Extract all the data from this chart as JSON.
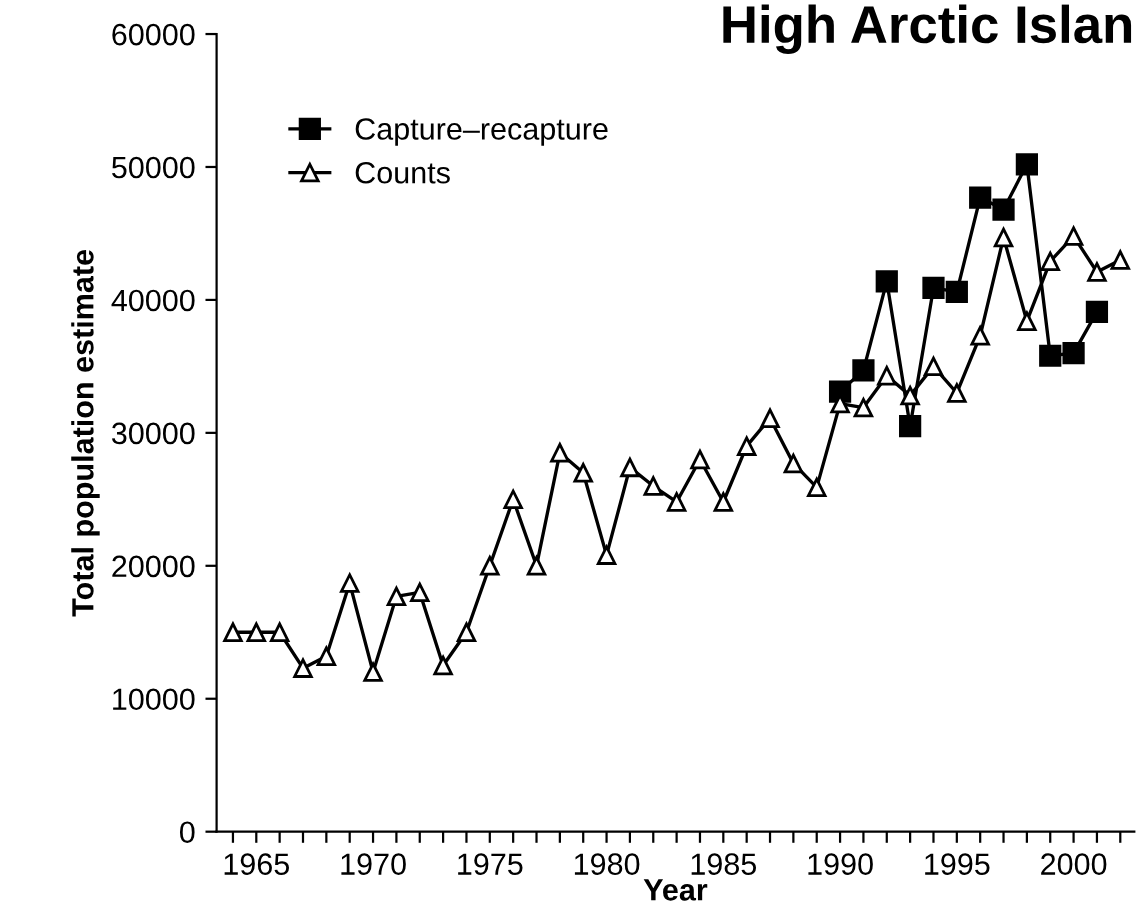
{
  "chart_data": {
    "type": "line",
    "title": "High Arctic Islan",
    "xlabel": "Year",
    "ylabel": "Total population estimate",
    "xlim": [
      1963.3,
      2002.6
    ],
    "ylim": [
      0,
      60000
    ],
    "xticks": [
      {
        "value": 1964,
        "label": null
      },
      1965,
      {
        "value": 1966,
        "label": null
      },
      {
        "value": 1967,
        "label": null
      },
      {
        "value": 1968,
        "label": null
      },
      {
        "value": 1969,
        "label": null
      },
      1970,
      {
        "value": 1971,
        "label": null
      },
      {
        "value": 1972,
        "label": null
      },
      {
        "value": 1973,
        "label": null
      },
      {
        "value": 1974,
        "label": null
      },
      1975,
      {
        "value": 1976,
        "label": null
      },
      {
        "value": 1977,
        "label": null
      },
      {
        "value": 1978,
        "label": null
      },
      {
        "value": 1979,
        "label": null
      },
      1980,
      {
        "value": 1981,
        "label": null
      },
      {
        "value": 1982,
        "label": null
      },
      {
        "value": 1983,
        "label": null
      },
      {
        "value": 1984,
        "label": null
      },
      1985,
      {
        "value": 1986,
        "label": null
      },
      {
        "value": 1987,
        "label": null
      },
      {
        "value": 1988,
        "label": null
      },
      {
        "value": 1989,
        "label": null
      },
      1990,
      {
        "value": 1991,
        "label": null
      },
      {
        "value": 1992,
        "label": null
      },
      {
        "value": 1993,
        "label": null
      },
      {
        "value": 1994,
        "label": null
      },
      1995,
      {
        "value": 1996,
        "label": null
      },
      {
        "value": 1997,
        "label": null
      },
      {
        "value": 1998,
        "label": null
      },
      {
        "value": 1999,
        "label": null
      },
      2000,
      {
        "value": 2001,
        "label": null
      },
      {
        "value": 2002,
        "label": null
      }
    ],
    "yticks": [
      0,
      10000,
      20000,
      30000,
      40000,
      50000,
      60000
    ],
    "grid": false,
    "legend": "top left",
    "series": [
      {
        "name": "Capture–recapture",
        "color": "#000000",
        "marker": "square",
        "x": [
          1990,
          1991,
          1992,
          1993,
          1994,
          1995,
          1996,
          1997,
          1998,
          1999,
          2000,
          2001
        ],
        "values": [
          33100,
          34700,
          41400,
          30500,
          40900,
          40600,
          47700,
          46800,
          50200,
          35800,
          36000,
          39100
        ]
      },
      {
        "name": "Counts",
        "color": "#000000",
        "marker": "triangle",
        "x": [
          1964,
          1965,
          1966,
          1967,
          1968,
          1969,
          1970,
          1971,
          1972,
          1973,
          1974,
          1975,
          1976,
          1977,
          1978,
          1979,
          1980,
          1981,
          1982,
          1983,
          1984,
          1985,
          1986,
          1987,
          1988,
          1989,
          1990,
          1991,
          1992,
          1993,
          1994,
          1995,
          1996,
          1997,
          1998,
          1999,
          2000,
          2001,
          2002
        ],
        "values": [
          15000,
          15000,
          15000,
          12300,
          13200,
          18700,
          12000,
          17700,
          18000,
          12500,
          15000,
          20000,
          25000,
          20000,
          28500,
          27000,
          20800,
          27400,
          26000,
          24800,
          28000,
          24800,
          29000,
          31100,
          27700,
          25900,
          32200,
          31900,
          34300,
          32800,
          35000,
          33000,
          37300,
          44700,
          38400,
          42900,
          44800,
          42100,
          43000
        ]
      }
    ]
  }
}
